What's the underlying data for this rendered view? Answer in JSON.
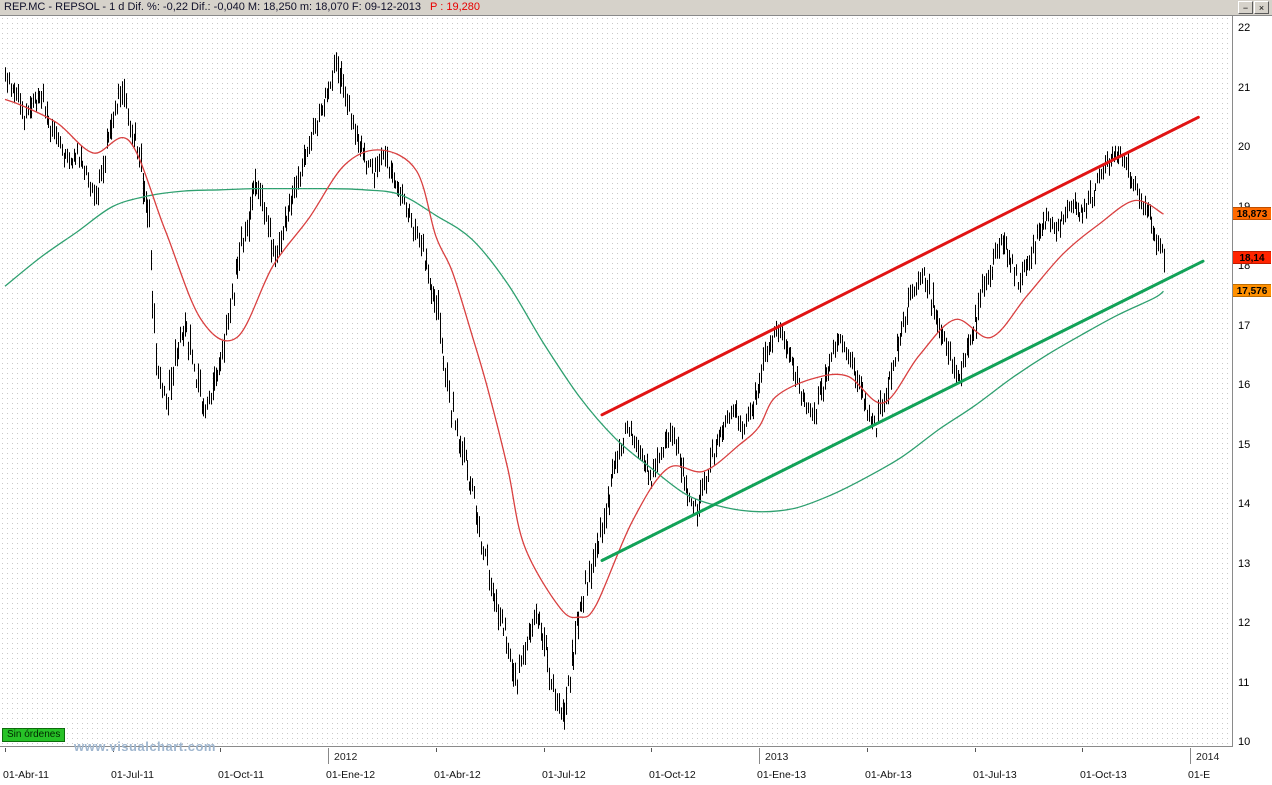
{
  "window": {
    "title_main": "REP.MC - REPSOL -  1 d  Dif. %: -0,22  Dif.: -0,040  M: 18,250  m: 18,070  F: 09-12-2013",
    "title_price": "P : 19,280",
    "minimize_label": "−",
    "close_label": "×"
  },
  "status": {
    "no_orders_label": "Sin órdenes",
    "watermark": "www.visualchart.com"
  },
  "axes": {
    "y_ticks": [
      22,
      21,
      20,
      19,
      18,
      17,
      16,
      15,
      14,
      13,
      12,
      11,
      10
    ],
    "x_year_labels": [
      {
        "label": "2012",
        "date": "2012-01-01"
      },
      {
        "label": "2013",
        "date": "2013-01-01"
      },
      {
        "label": "2014",
        "date": "2014-01-01"
      }
    ],
    "x_date_labels": [
      {
        "label": "01-Abr-11",
        "date": "2011-04-01"
      },
      {
        "label": "01-Jul-11",
        "date": "2011-07-01"
      },
      {
        "label": "01-Oct-11",
        "date": "2011-10-01"
      },
      {
        "label": "01-Ene-12",
        "date": "2012-01-01"
      },
      {
        "label": "01-Abr-12",
        "date": "2012-04-01"
      },
      {
        "label": "01-Jul-12",
        "date": "2012-07-01"
      },
      {
        "label": "01-Oct-12",
        "date": "2012-10-01"
      },
      {
        "label": "01-Ene-13",
        "date": "2013-01-01"
      },
      {
        "label": "01-Abr-13",
        "date": "2013-04-01"
      },
      {
        "label": "01-Jul-13",
        "date": "2013-07-01"
      },
      {
        "label": "01-Oct-13",
        "date": "2013-10-01"
      },
      {
        "label": "01-E",
        "date": "2014-01-01"
      }
    ],
    "price_markers": [
      {
        "series": "ma-fast",
        "value_label": "18,873",
        "value": 18.873,
        "color": "#ff6a00"
      },
      {
        "series": "last-price",
        "value_label": "18,14",
        "value": 18.14,
        "color": "#ff2400"
      },
      {
        "series": "ma-slow",
        "value_label": "17,576",
        "value": 17.576,
        "color": "#ff9000"
      }
    ]
  },
  "chart_data": {
    "type": "candlestick",
    "symbol": "REP.MC",
    "name": "REPSOL",
    "period": "1 d",
    "header_values": {
      "dif_pct": -0.22,
      "dif": -0.04,
      "session_max": 18.25,
      "session_min": 18.07,
      "date": "09-12-2013",
      "p_value": 19.28
    },
    "ylim": [
      10,
      22
    ],
    "x_range": [
      "2011-04-01",
      "2014-01-01"
    ],
    "last_price": 18.14,
    "candle_color": "#000000",
    "weekly_closes": [
      [
        "2011-04-01",
        21.2
      ],
      [
        "2011-04-09",
        20.9
      ],
      [
        "2011-04-17",
        20.4
      ],
      [
        "2011-04-25",
        20.7
      ],
      [
        "2011-05-01",
        20.9
      ],
      [
        "2011-05-09",
        20.4
      ],
      [
        "2011-05-17",
        20.0
      ],
      [
        "2011-05-25",
        19.7
      ],
      [
        "2011-06-01",
        19.9
      ],
      [
        "2011-06-09",
        19.5
      ],
      [
        "2011-06-17",
        19.2
      ],
      [
        "2011-06-25",
        19.8
      ],
      [
        "2011-07-01",
        20.6
      ],
      [
        "2011-07-09",
        21.0
      ],
      [
        "2011-07-17",
        20.3
      ],
      [
        "2011-07-25",
        19.8
      ],
      [
        "2011-08-01",
        18.6
      ],
      [
        "2011-08-09",
        16.1
      ],
      [
        "2011-08-17",
        15.7
      ],
      [
        "2011-08-25",
        16.5
      ],
      [
        "2011-09-01",
        17.0
      ],
      [
        "2011-09-09",
        16.3
      ],
      [
        "2011-09-17",
        15.6
      ],
      [
        "2011-09-25",
        15.9
      ],
      [
        "2011-10-01",
        16.4
      ],
      [
        "2011-10-09",
        17.2
      ],
      [
        "2011-10-17",
        18.1
      ],
      [
        "2011-10-25",
        18.8
      ],
      [
        "2011-11-01",
        19.4
      ],
      [
        "2011-11-09",
        18.8
      ],
      [
        "2011-11-17",
        18.2
      ],
      [
        "2011-11-25",
        18.7
      ],
      [
        "2011-12-01",
        19.1
      ],
      [
        "2011-12-09",
        19.6
      ],
      [
        "2011-12-17",
        20.1
      ],
      [
        "2011-12-25",
        20.6
      ],
      [
        "2012-01-01",
        21.0
      ],
      [
        "2012-01-09",
        21.4
      ],
      [
        "2012-01-17",
        20.8
      ],
      [
        "2012-01-25",
        20.2
      ],
      [
        "2012-02-01",
        19.8
      ],
      [
        "2012-02-09",
        19.5
      ],
      [
        "2012-02-17",
        19.9
      ],
      [
        "2012-02-25",
        19.5
      ],
      [
        "2012-03-01",
        19.2
      ],
      [
        "2012-03-09",
        18.8
      ],
      [
        "2012-03-17",
        18.4
      ],
      [
        "2012-03-25",
        17.9
      ],
      [
        "2012-04-01",
        17.4
      ],
      [
        "2012-04-09",
        16.2
      ],
      [
        "2012-04-17",
        15.3
      ],
      [
        "2012-04-25",
        14.8
      ],
      [
        "2012-05-01",
        14.2
      ],
      [
        "2012-05-09",
        13.4
      ],
      [
        "2012-05-17",
        12.7
      ],
      [
        "2012-05-25",
        12.1
      ],
      [
        "2012-06-01",
        11.6
      ],
      [
        "2012-06-09",
        11.0
      ],
      [
        "2012-06-17",
        11.7
      ],
      [
        "2012-06-25",
        12.3
      ],
      [
        "2012-07-01",
        11.7
      ],
      [
        "2012-07-09",
        10.9
      ],
      [
        "2012-07-17",
        10.5
      ],
      [
        "2012-07-25",
        11.4
      ],
      [
        "2012-08-01",
        12.2
      ],
      [
        "2012-08-09",
        12.8
      ],
      [
        "2012-08-17",
        13.4
      ],
      [
        "2012-08-25",
        14.0
      ],
      [
        "2012-09-01",
        14.7
      ],
      [
        "2012-09-09",
        15.3
      ],
      [
        "2012-09-17",
        15.1
      ],
      [
        "2012-09-25",
        14.7
      ],
      [
        "2012-10-01",
        14.4
      ],
      [
        "2012-10-09",
        14.9
      ],
      [
        "2012-10-17",
        15.2
      ],
      [
        "2012-10-25",
        14.8
      ],
      [
        "2012-11-01",
        14.1
      ],
      [
        "2012-11-09",
        13.9
      ],
      [
        "2012-11-17",
        14.4
      ],
      [
        "2012-11-25",
        15.0
      ],
      [
        "2012-12-01",
        15.3
      ],
      [
        "2012-12-09",
        15.6
      ],
      [
        "2012-12-17",
        15.3
      ],
      [
        "2012-12-25",
        15.5
      ],
      [
        "2013-01-01",
        16.1
      ],
      [
        "2013-01-09",
        16.6
      ],
      [
        "2013-01-17",
        17.0
      ],
      [
        "2013-01-25",
        16.6
      ],
      [
        "2013-02-01",
        16.1
      ],
      [
        "2013-02-09",
        15.7
      ],
      [
        "2013-02-17",
        15.5
      ],
      [
        "2013-02-25",
        16.0
      ],
      [
        "2013-03-01",
        16.5
      ],
      [
        "2013-03-09",
        16.8
      ],
      [
        "2013-03-17",
        16.4
      ],
      [
        "2013-03-25",
        16.0
      ],
      [
        "2013-04-01",
        15.6
      ],
      [
        "2013-04-09",
        15.3
      ],
      [
        "2013-04-17",
        15.9
      ],
      [
        "2013-04-25",
        16.5
      ],
      [
        "2013-05-01",
        17.1
      ],
      [
        "2013-05-09",
        17.6
      ],
      [
        "2013-05-17",
        17.9
      ],
      [
        "2013-05-25",
        17.5
      ],
      [
        "2013-06-01",
        17.0
      ],
      [
        "2013-06-09",
        16.5
      ],
      [
        "2013-06-17",
        16.1
      ],
      [
        "2013-06-25",
        16.5
      ],
      [
        "2013-07-01",
        17.0
      ],
      [
        "2013-07-09",
        17.6
      ],
      [
        "2013-07-17",
        18.1
      ],
      [
        "2013-07-25",
        18.4
      ],
      [
        "2013-08-01",
        18.1
      ],
      [
        "2013-08-09",
        17.7
      ],
      [
        "2013-08-17",
        18.1
      ],
      [
        "2013-08-25",
        18.5
      ],
      [
        "2013-09-01",
        18.8
      ],
      [
        "2013-09-09",
        18.6
      ],
      [
        "2013-09-17",
        18.9
      ],
      [
        "2013-09-25",
        19.1
      ],
      [
        "2013-10-01",
        18.8
      ],
      [
        "2013-10-09",
        19.2
      ],
      [
        "2013-10-17",
        19.6
      ],
      [
        "2013-10-25",
        19.8
      ],
      [
        "2013-11-01",
        19.9
      ],
      [
        "2013-11-09",
        19.6
      ],
      [
        "2013-11-17",
        19.2
      ],
      [
        "2013-11-25",
        18.9
      ],
      [
        "2013-12-01",
        18.5
      ],
      [
        "2013-12-09",
        18.14
      ]
    ],
    "ma_fast": {
      "label": "moving-average-fast",
      "color": "#d94040",
      "last": 18.873,
      "points": [
        [
          "2011-04-01",
          20.8
        ],
        [
          "2011-04-15",
          20.7
        ],
        [
          "2011-05-15",
          20.4
        ],
        [
          "2011-06-15",
          19.9
        ],
        [
          "2011-07-15",
          20.1
        ],
        [
          "2011-08-15",
          18.6
        ],
        [
          "2011-09-15",
          17.1
        ],
        [
          "2011-10-15",
          16.8
        ],
        [
          "2011-11-15",
          18.0
        ],
        [
          "2011-12-15",
          18.8
        ],
        [
          "2012-01-15",
          19.7
        ],
        [
          "2012-02-15",
          19.95
        ],
        [
          "2012-03-15",
          19.6
        ],
        [
          "2012-04-01",
          18.5
        ],
        [
          "2012-04-15",
          17.9
        ],
        [
          "2012-05-01",
          16.85
        ],
        [
          "2012-05-15",
          15.9
        ],
        [
          "2012-06-01",
          14.6
        ],
        [
          "2012-06-15",
          13.3
        ],
        [
          "2012-07-15",
          12.25
        ],
        [
          "2012-08-01",
          12.1
        ],
        [
          "2012-08-15",
          12.3
        ],
        [
          "2012-09-15",
          13.7
        ],
        [
          "2012-10-15",
          14.6
        ],
        [
          "2012-11-15",
          14.55
        ],
        [
          "2012-12-15",
          15.0
        ],
        [
          "2013-01-01",
          15.3
        ],
        [
          "2013-01-15",
          15.8
        ],
        [
          "2013-02-15",
          16.1
        ],
        [
          "2013-03-15",
          16.15
        ],
        [
          "2013-04-15",
          15.7
        ],
        [
          "2013-05-15",
          16.5
        ],
        [
          "2013-06-15",
          17.1
        ],
        [
          "2013-07-15",
          16.8
        ],
        [
          "2013-08-15",
          17.5
        ],
        [
          "2013-09-15",
          18.2
        ],
        [
          "2013-10-15",
          18.7
        ],
        [
          "2013-11-15",
          19.1
        ],
        [
          "2013-12-09",
          18.873
        ]
      ]
    },
    "ma_slow": {
      "label": "moving-average-slow",
      "color": "#2fa070",
      "last": 17.576,
      "points": [
        [
          "2011-04-01",
          17.66
        ],
        [
          "2011-05-01",
          18.15
        ],
        [
          "2011-06-01",
          18.57
        ],
        [
          "2011-07-01",
          19.0
        ],
        [
          "2011-08-01",
          19.18
        ],
        [
          "2011-09-01",
          19.26
        ],
        [
          "2011-10-01",
          19.28
        ],
        [
          "2011-11-01",
          19.3
        ],
        [
          "2011-12-01",
          19.3
        ],
        [
          "2012-01-01",
          19.3
        ],
        [
          "2012-02-01",
          19.28
        ],
        [
          "2012-03-01",
          19.2
        ],
        [
          "2012-04-01",
          18.85
        ],
        [
          "2012-05-01",
          18.45
        ],
        [
          "2012-06-01",
          17.7
        ],
        [
          "2012-07-01",
          16.7
        ],
        [
          "2012-08-01",
          15.8
        ],
        [
          "2012-09-01",
          15.1
        ],
        [
          "2012-10-01",
          14.6
        ],
        [
          "2012-11-01",
          14.15
        ],
        [
          "2012-12-01",
          13.95
        ],
        [
          "2013-01-01",
          13.87
        ],
        [
          "2013-02-01",
          13.93
        ],
        [
          "2013-03-01",
          14.15
        ],
        [
          "2013-04-01",
          14.45
        ],
        [
          "2013-05-01",
          14.8
        ],
        [
          "2013-06-01",
          15.25
        ],
        [
          "2013-07-01",
          15.65
        ],
        [
          "2013-08-01",
          16.1
        ],
        [
          "2013-09-01",
          16.5
        ],
        [
          "2013-10-01",
          16.85
        ],
        [
          "2013-11-01",
          17.18
        ],
        [
          "2013-12-01",
          17.46
        ],
        [
          "2013-12-09",
          17.576
        ]
      ]
    },
    "trendlines": [
      {
        "name": "channel-upper",
        "color": "#e11414",
        "width": 3,
        "from": [
          "2012-08-20",
          15.5
        ],
        "to": [
          "2014-01-08",
          20.5
        ]
      },
      {
        "name": "channel-lower",
        "color": "#12a258",
        "width": 3,
        "from": [
          "2012-08-20",
          13.05
        ],
        "to": [
          "2014-01-12",
          18.08
        ]
      }
    ]
  }
}
